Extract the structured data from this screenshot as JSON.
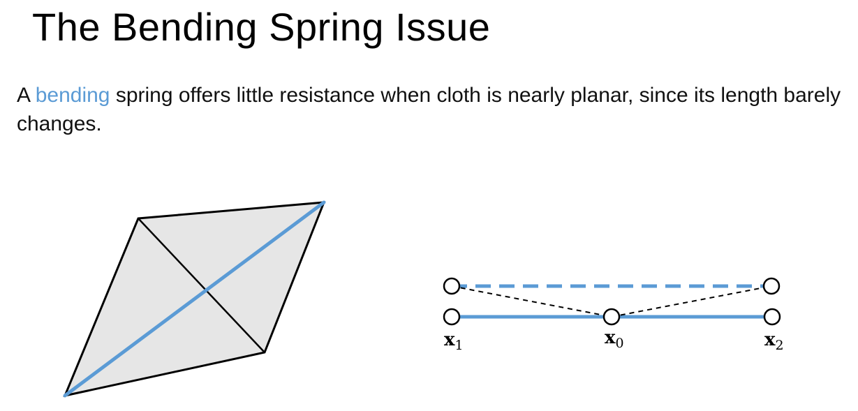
{
  "slide": {
    "title": "The Bending Spring Issue",
    "body": {
      "prefix": "A ",
      "highlight": "bending",
      "suffix": " spring offers little resistance when cloth is nearly planar, since its length barely changes."
    }
  },
  "colors": {
    "accent": "#5b9bd5",
    "triangle_fill": "#e6e6e6",
    "stroke": "#000000"
  },
  "diagram": {
    "labels": [
      {
        "base": "x",
        "sub": "1"
      },
      {
        "base": "x",
        "sub": "0"
      },
      {
        "base": "x",
        "sub": "2"
      }
    ]
  }
}
